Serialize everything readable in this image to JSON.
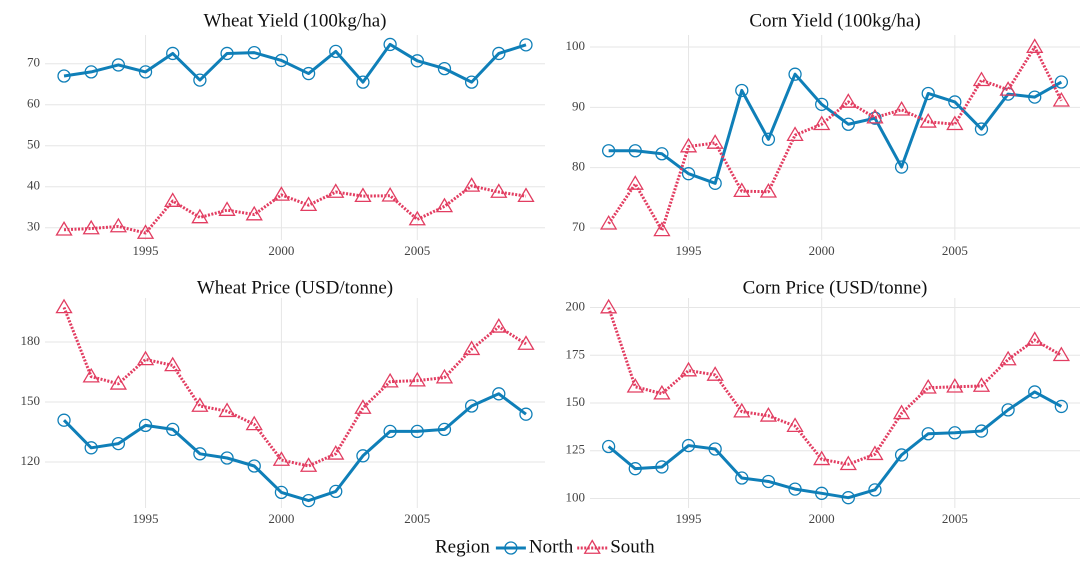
{
  "chart_data": [
    {
      "type": "line",
      "title": "Wheat Yield (100kg/ha)",
      "x": [
        1992,
        1993,
        1994,
        1995,
        1996,
        1997,
        1998,
        1999,
        2000,
        2001,
        2002,
        2003,
        2004,
        2005,
        2006,
        2007,
        2008,
        2009
      ],
      "xlim": [
        1991.3,
        2009.7
      ],
      "xticks": [
        1995,
        2000,
        2005
      ],
      "ylim": [
        27,
        77
      ],
      "yticks": [
        30,
        40,
        50,
        60,
        70
      ],
      "grid": true,
      "series": [
        {
          "name": "North",
          "color": "#0f7fb8",
          "values": [
            67,
            68,
            69.7,
            68,
            72.5,
            66,
            72.5,
            72.7,
            70.8,
            67.6,
            73,
            65.5,
            74.7,
            70.7,
            68.8,
            65.5,
            72.5,
            74.6
          ]
        },
        {
          "name": "South",
          "color": "#e23d61",
          "values": [
            29.5,
            29.8,
            30.3,
            28.7,
            36.5,
            32.5,
            34.3,
            33.2,
            38,
            35.5,
            38.7,
            37.7,
            37.8,
            32,
            35.2,
            40.2,
            38.7,
            37.7
          ]
        }
      ]
    },
    {
      "type": "line",
      "title": "Corn Yield (100kg/ha)",
      "x": [
        1992,
        1993,
        1994,
        1995,
        1996,
        1997,
        1998,
        1999,
        2000,
        2001,
        2002,
        2003,
        2004,
        2005,
        2006,
        2007,
        2008,
        2009
      ],
      "xlim": [
        1991.3,
        2009.7
      ],
      "xticks": [
        1995,
        2000,
        2005
      ],
      "ylim": [
        68,
        102
      ],
      "yticks": [
        70,
        80,
        90,
        100
      ],
      "grid": true,
      "series": [
        {
          "name": "North",
          "color": "#0f7fb8",
          "values": [
            82.8,
            82.8,
            82.3,
            79,
            77.4,
            92.8,
            84.7,
            95.5,
            90.5,
            87.2,
            88.2,
            80.1,
            92.3,
            90.9,
            86.4,
            92.2,
            91.7,
            94.2
          ]
        },
        {
          "name": "South",
          "color": "#e23d61",
          "values": [
            70.7,
            77.3,
            69.6,
            83.5,
            84.1,
            76.1,
            76,
            85.4,
            87.2,
            90.9,
            88.3,
            89.6,
            87.6,
            87.2,
            94.5,
            92.9,
            100,
            91.1
          ]
        }
      ]
    },
    {
      "type": "line",
      "title": "Wheat Price (USD/tonne)",
      "x": [
        1992,
        1993,
        1994,
        1995,
        1996,
        1997,
        1998,
        1999,
        2000,
        2001,
        2002,
        2003,
        2004,
        2005,
        2006,
        2007,
        2008,
        2009
      ],
      "xlim": [
        1991.3,
        2009.7
      ],
      "xticks": [
        1995,
        2000,
        2005
      ],
      "ylim": [
        97,
        202
      ],
      "yticks": [
        120,
        150,
        180
      ],
      "grid": true,
      "series": [
        {
          "name": "North",
          "color": "#0f7fb8",
          "values": [
            140.9,
            127.1,
            129.2,
            138.3,
            136.3,
            124.1,
            122,
            118,
            104.8,
            100.7,
            105.3,
            123.1,
            135.3,
            135.3,
            136.3,
            148,
            154.1,
            143.9
          ]
        },
        {
          "name": "South",
          "color": "#e23d61",
          "values": [
            197.3,
            162.7,
            159.1,
            171.3,
            168.3,
            148,
            145.4,
            138.8,
            121,
            118,
            124.1,
            147,
            160.2,
            160.7,
            162.2,
            176.4,
            187.6,
            179
          ]
        }
      ]
    },
    {
      "type": "line",
      "title": "Corn Price (USD/tonne)",
      "x": [
        1992,
        1993,
        1994,
        1995,
        1996,
        1997,
        1998,
        1999,
        2000,
        2001,
        2002,
        2003,
        2004,
        2005,
        2006,
        2007,
        2008,
        2009
      ],
      "xlim": [
        1991.3,
        2009.7
      ],
      "xticks": [
        1995,
        2000,
        2005
      ],
      "ylim": [
        95,
        205
      ],
      "yticks": [
        100,
        125,
        150,
        175,
        200
      ],
      "grid": true,
      "series": [
        {
          "name": "North",
          "color": "#0f7fb8",
          "values": [
            127.2,
            115.6,
            116.5,
            127.7,
            125.9,
            110.7,
            108.9,
            104.9,
            102.7,
            100.4,
            104.5,
            122.8,
            133.9,
            134.4,
            135.3,
            146.4,
            155.8,
            148.2
          ]
        },
        {
          "name": "South",
          "color": "#e23d61",
          "values": [
            200,
            158.5,
            154.9,
            167,
            164.7,
            145.5,
            143.3,
            137.9,
            120.5,
            117.9,
            123.2,
            144.6,
            158,
            158.5,
            158.9,
            172.8,
            183,
            175
          ]
        }
      ]
    }
  ],
  "legend": {
    "title": "Region"
  }
}
